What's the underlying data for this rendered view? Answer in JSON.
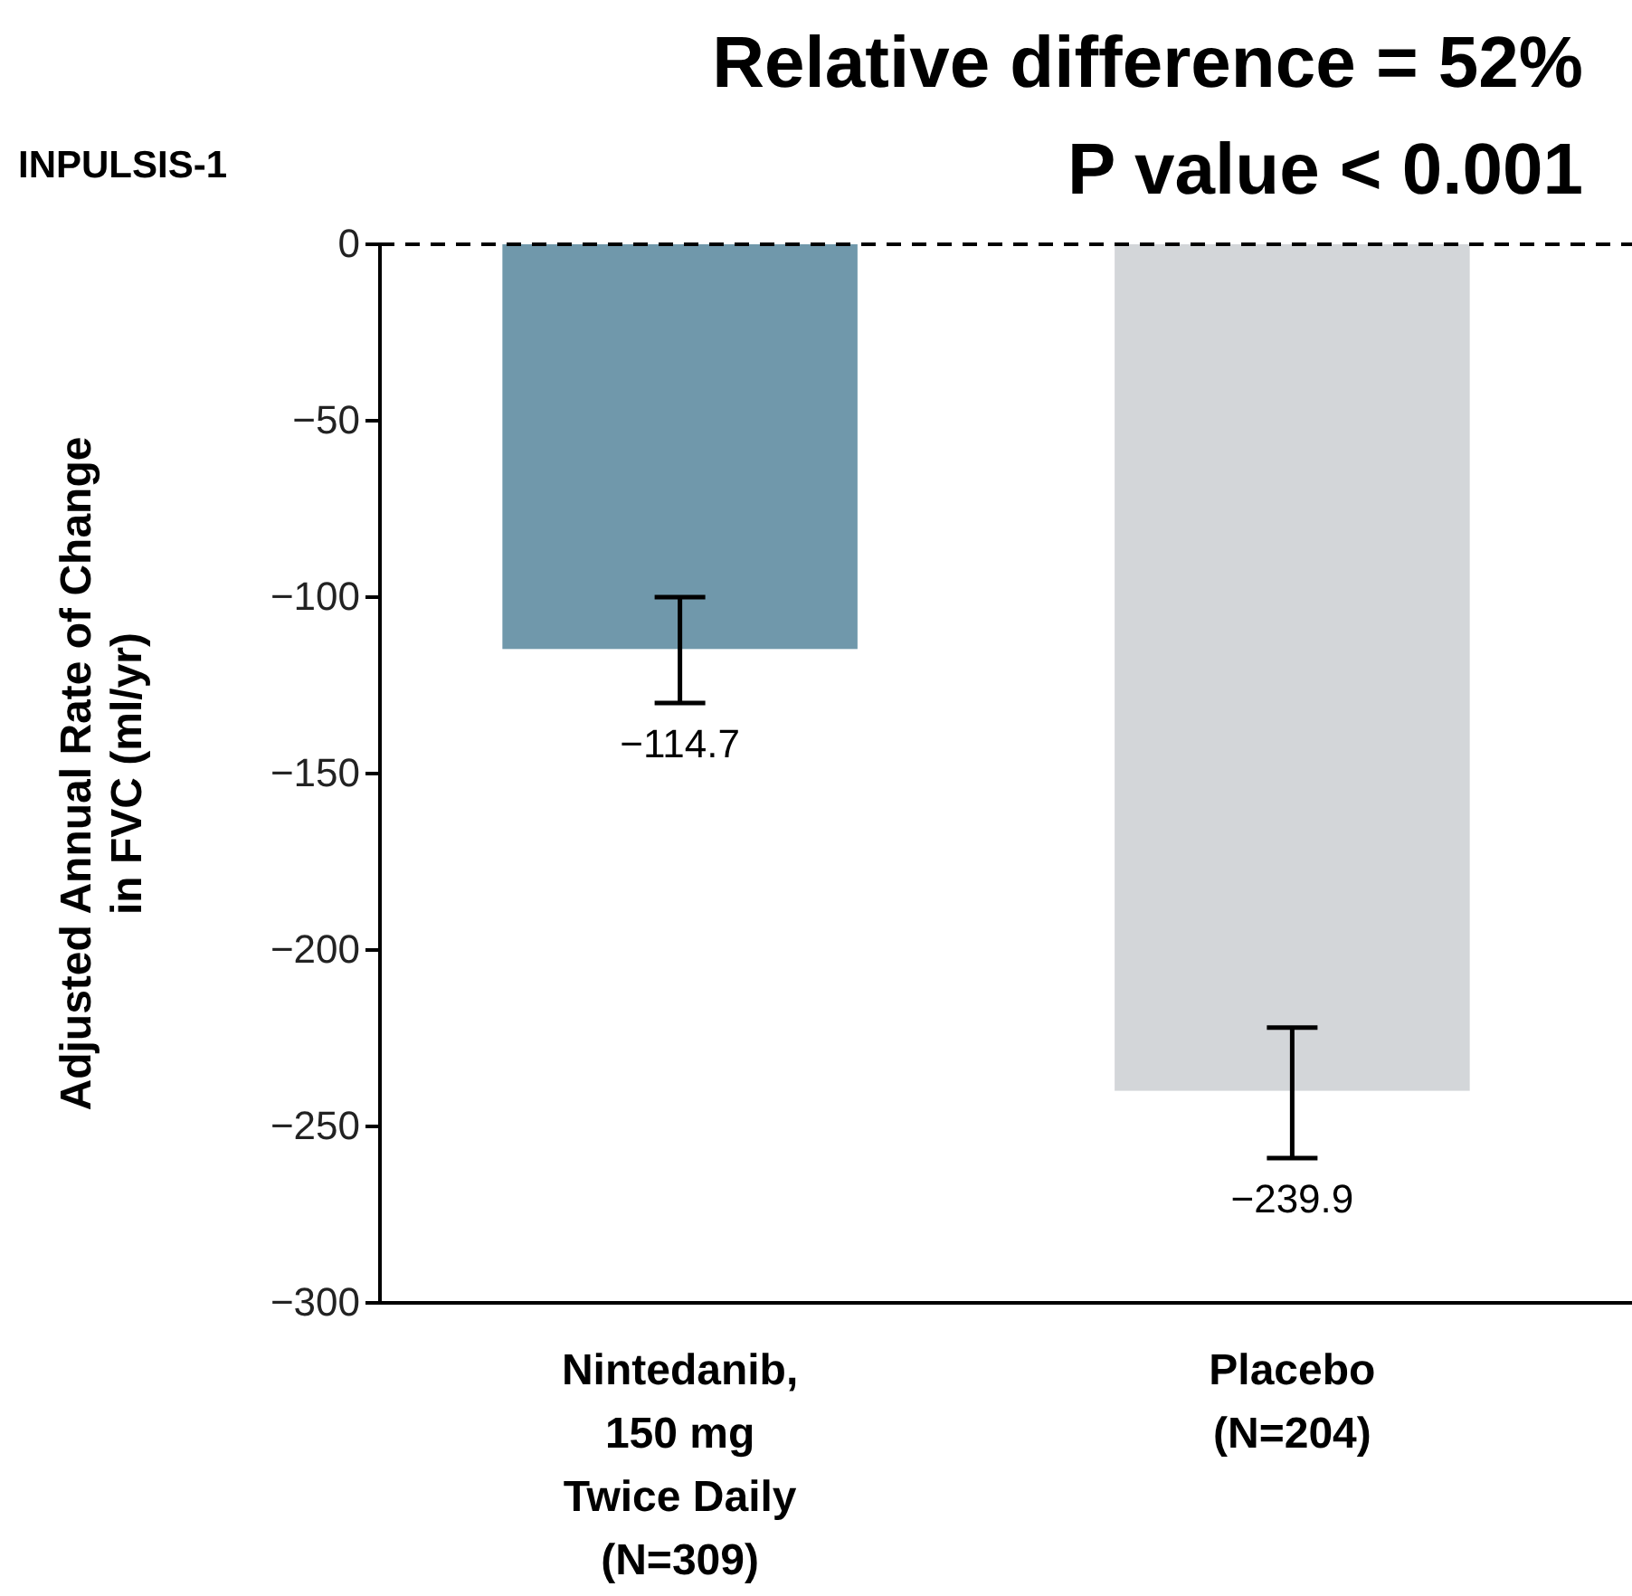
{
  "chart_data": {
    "type": "bar",
    "title": "Relative difference = 52%",
    "subtitle": "P value < 0.001",
    "annotations": [
      "INPULSIS-1"
    ],
    "ylabel": "Adjusted Annual Rate of Change\nin FVC (ml/yr)",
    "categories": [
      "Nintedanib,\n150 mg\nTwice Daily\n(N=309)",
      "Placebo\n(N=204)"
    ],
    "values": [
      -114.7,
      -239.9
    ],
    "colors": [
      "#7098ab",
      "#d3d6d9"
    ],
    "errors": [
      [
        -130,
        -100
      ],
      [
        -259,
        -222
      ]
    ],
    "value_labels": [
      "−114.7",
      "−239.9"
    ],
    "ylim": [
      -300,
      0
    ],
    "yticks": [
      {
        "value": -300,
        "label": "−300"
      },
      {
        "value": -250,
        "label": "−250"
      },
      {
        "value": -200,
        "label": "−200"
      },
      {
        "value": -150,
        "label": "−150"
      },
      {
        "value": -100,
        "label": "−100"
      },
      {
        "value": -50,
        "label": "−50"
      },
      0
    ],
    "ref_lines": [
      {
        "axis": "y",
        "value": 0,
        "line_style": "dashed",
        "color": "#000000"
      }
    ],
    "grid": false
  }
}
